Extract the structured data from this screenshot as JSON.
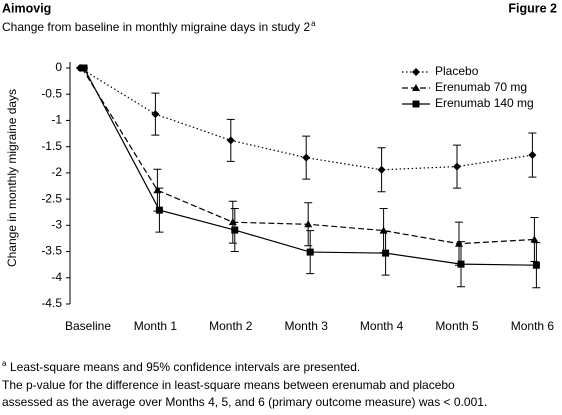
{
  "header": {
    "title": "Aimovig",
    "figure": "Figure 2"
  },
  "chart_data": {
    "type": "line",
    "subtitle": "Change from baseline in monthly migraine days in study 2",
    "subtitle_note": "a",
    "y_label": "Change in monthly migraine days",
    "categories": [
      "Baseline",
      "Month 1",
      "Month 2",
      "Month 3",
      "Month 4",
      "Month 5",
      "Month 6"
    ],
    "series": [
      {
        "name": "Placebo",
        "color": "#000000",
        "dash": "dotted",
        "marker": "diamond",
        "values": [
          0,
          -0.88,
          -1.38,
          -1.71,
          -1.94,
          -1.88,
          -1.66
        ],
        "errors": [
          0,
          0.4,
          0.4,
          0.41,
          0.42,
          0.41,
          0.42
        ]
      },
      {
        "name": "Erenumab 70 mg",
        "color": "#000000",
        "dash": "dashed",
        "marker": "triangle",
        "values": [
          0,
          -2.33,
          -2.94,
          -2.98,
          -3.1,
          -3.35,
          -3.27
        ],
        "errors": [
          0,
          0.4,
          0.4,
          0.41,
          0.42,
          0.41,
          0.42
        ]
      },
      {
        "name": "Erenumab 140 mg",
        "color": "#000000",
        "dash": "solid",
        "marker": "square",
        "values": [
          0,
          -2.71,
          -3.09,
          -3.51,
          -3.53,
          -3.74,
          -3.76
        ],
        "errors": [
          0,
          0.42,
          0.41,
          0.41,
          0.42,
          0.43,
          0.43
        ]
      }
    ],
    "ylim": [
      0,
      -4.5
    ],
    "yticks": [
      0,
      -0.5,
      -1,
      -1.5,
      -2,
      -2.5,
      -3,
      -3.5,
      -4,
      -4.5
    ],
    "grid": false,
    "legend": "upper right"
  },
  "footnote_marker": "a",
  "footnotes": [
    "Least-square means and 95% confidence intervals are presented.",
    "The p-value for the difference in least-square means between erenumab and placebo",
    "assessed as the average over Months 4, 5, and 6 (primary outcome measure) was < 0.001."
  ]
}
